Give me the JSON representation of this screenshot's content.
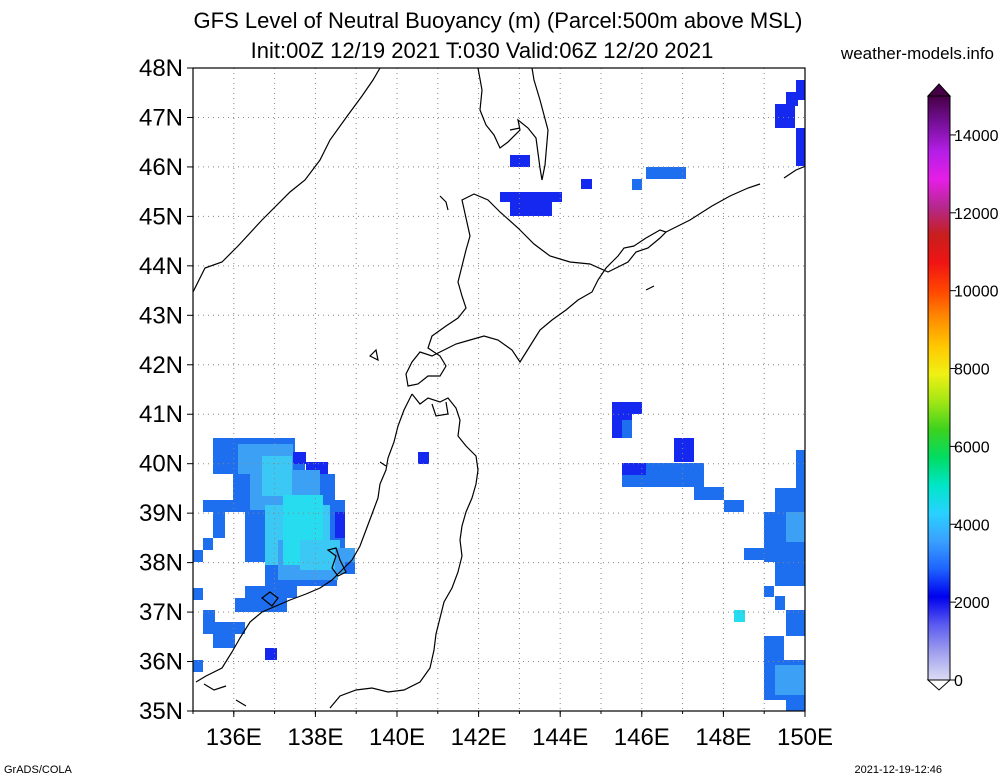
{
  "title_line1": "GFS Level of Neutral Buoyancy (m) (Parcel:500m above MSL)",
  "title_line2": "Init:00Z 12/19 2021 T:030 Valid:06Z 12/20 2021",
  "site": "weather-models.info",
  "credit": "GrADS/COLA",
  "timestamp": "2021-12-19-12:46",
  "map": {
    "lon_range": [
      135,
      150
    ],
    "lat_range": [
      35,
      48
    ],
    "lon_ticks": [
      "136E",
      "138E",
      "140E",
      "142E",
      "144E",
      "146E",
      "148E",
      "150E"
    ],
    "lat_ticks": [
      "35N",
      "36N",
      "37N",
      "38N",
      "39N",
      "40N",
      "41N",
      "42N",
      "43N",
      "44N",
      "45N",
      "46N",
      "47N",
      "48N"
    ],
    "grid": "dotted, every 1 degree"
  },
  "colorbar": {
    "labels": [
      "0",
      "2000",
      "4000",
      "6000",
      "8000",
      "10000",
      "12000",
      "14000"
    ],
    "min": 0,
    "max": 15000,
    "stops": [
      "#dcdcf5",
      "#a0a0ee",
      "#5a5af0",
      "#0000ee",
      "#1e64ff",
      "#3aa0ff",
      "#28d2ff",
      "#00e6c8",
      "#00dc64",
      "#3cd21e",
      "#a0e614",
      "#f0f014",
      "#ffc800",
      "#ff8c00",
      "#ff4600",
      "#f01414",
      "#c81e1e",
      "#b4288c",
      "#e61ee6",
      "#b41ee6",
      "#78109c",
      "#460046"
    ]
  },
  "colors": {
    "deep_blue": "#1428f0",
    "mid_blue": "#1e6ef0",
    "light_blue": "#3ca0f5",
    "cyan_blue": "#3cc8f5",
    "aqua": "#28dcf0",
    "coastline": "#000000"
  }
}
